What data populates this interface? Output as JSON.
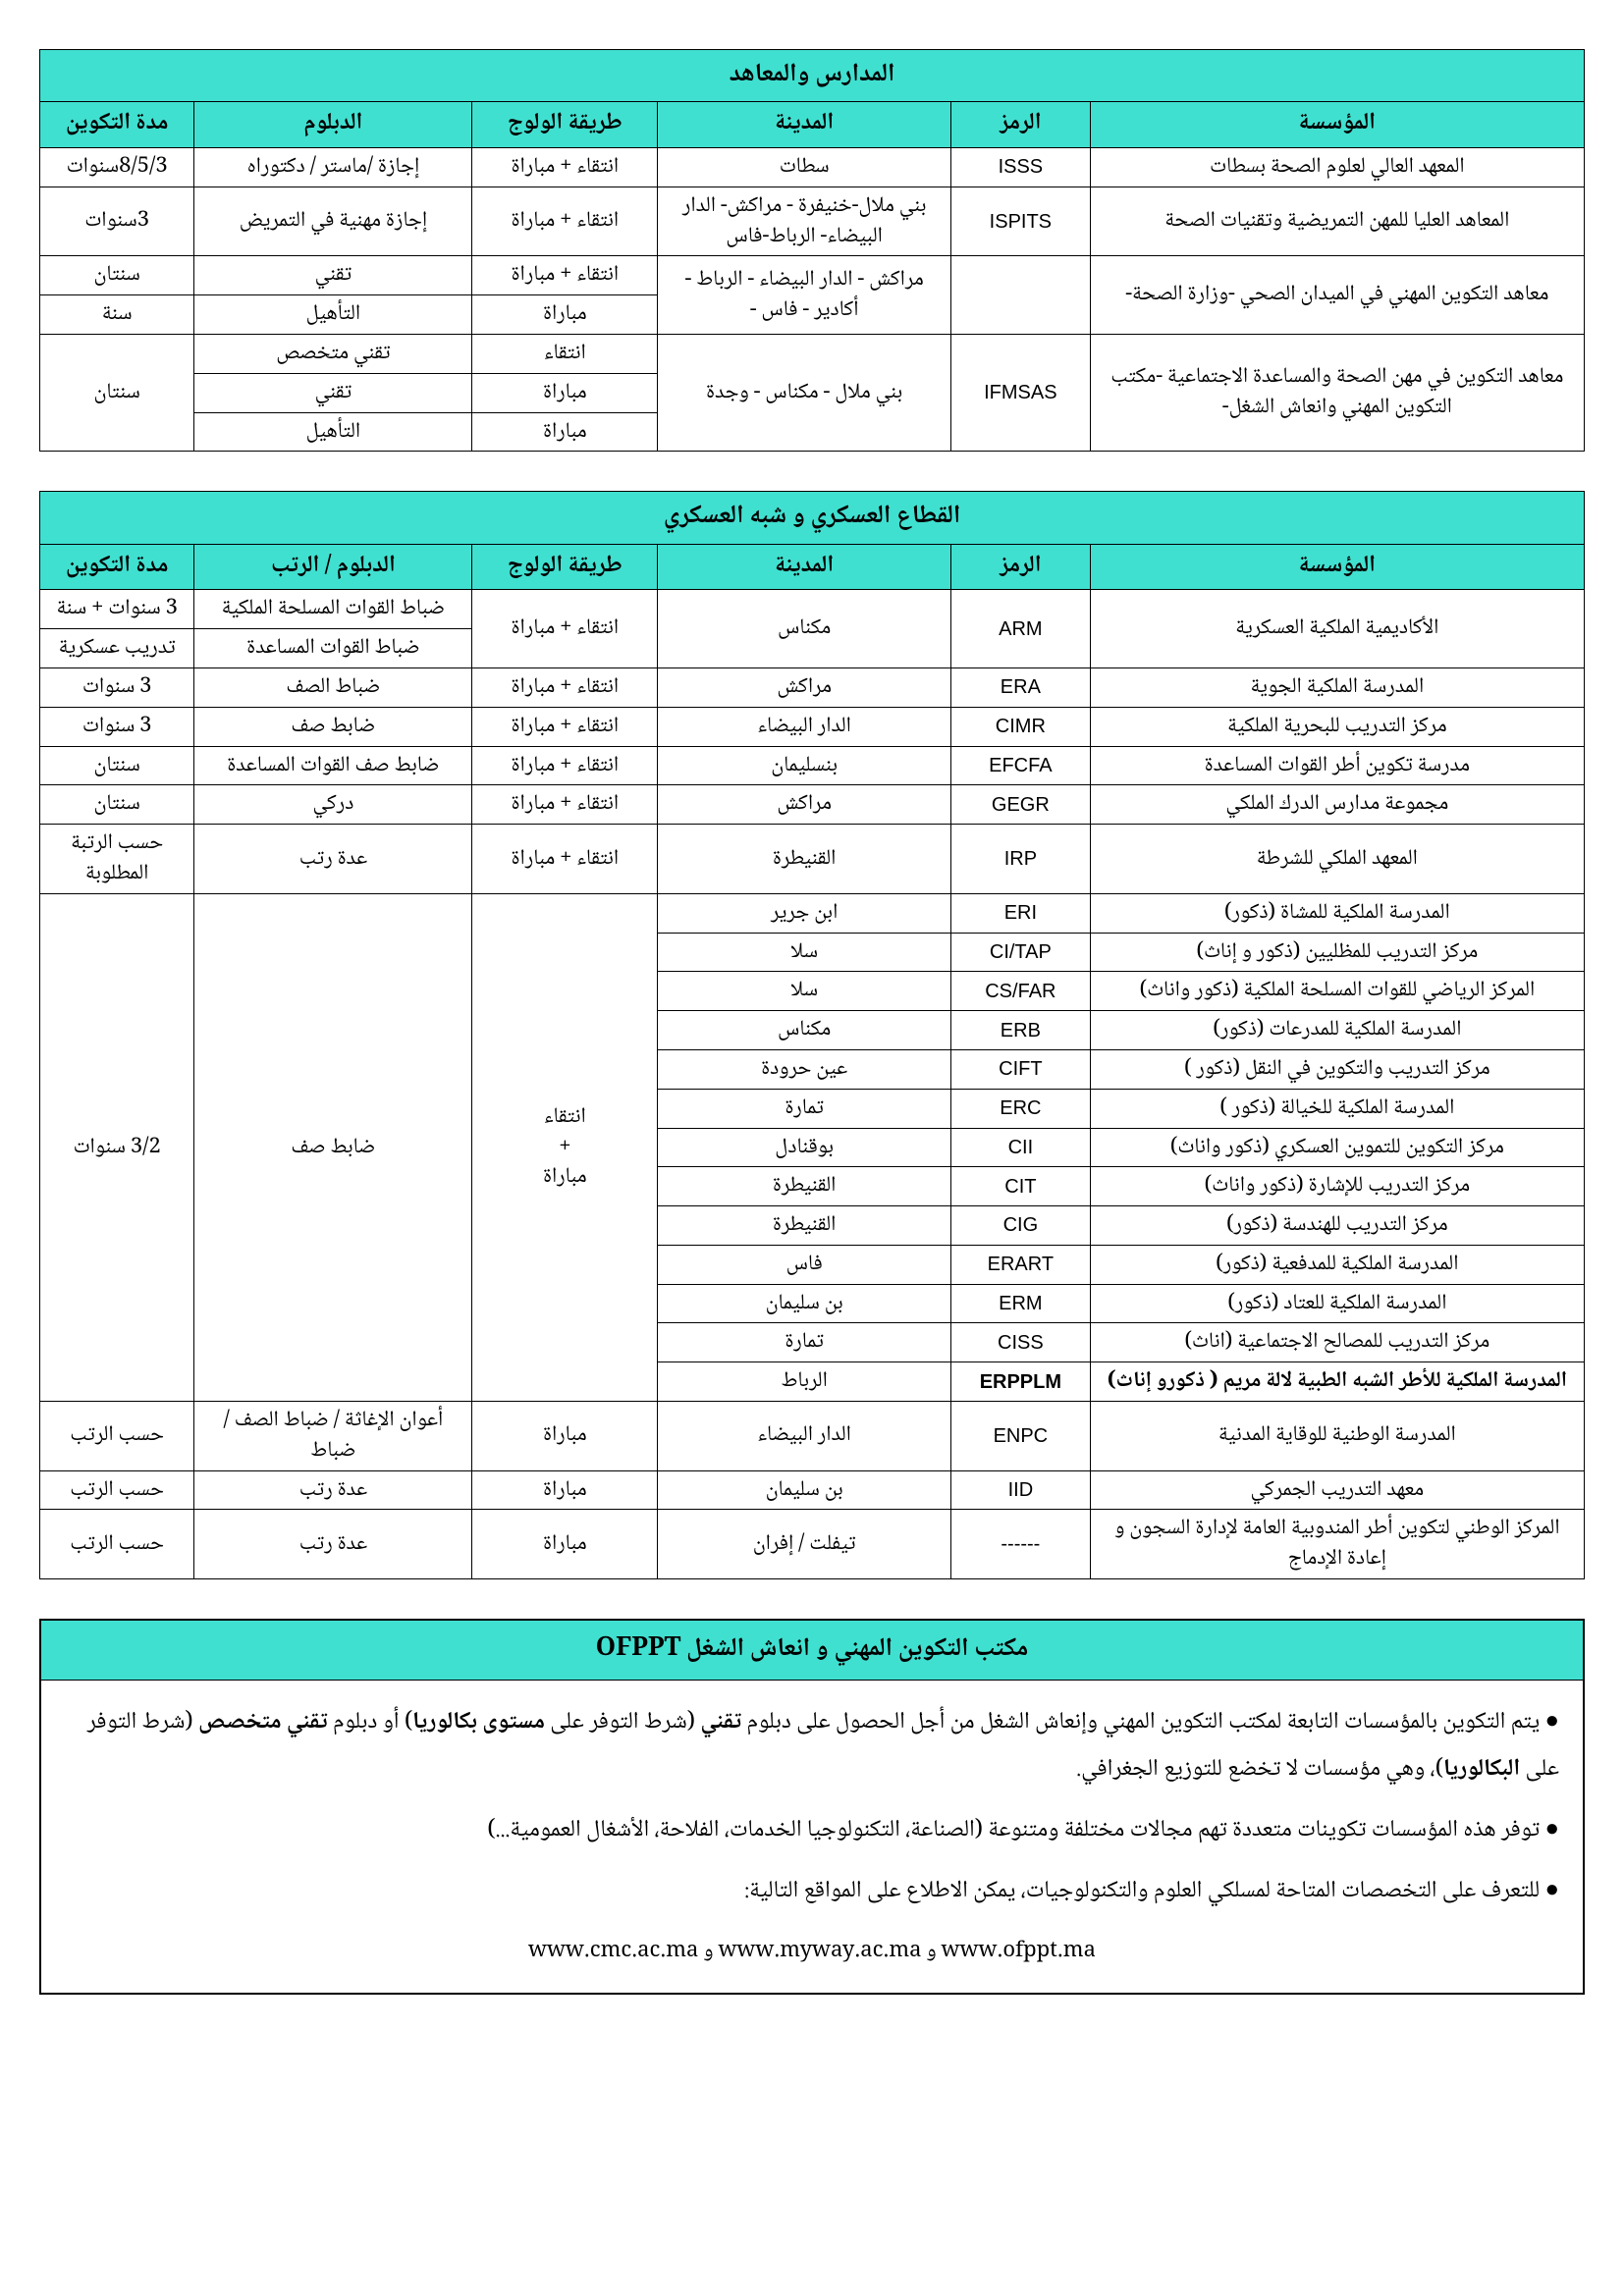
{
  "colors": {
    "header_bg": "#40e0d0",
    "border": "#000000",
    "text": "#000000",
    "page_bg": "#ffffff"
  },
  "t1": {
    "title": "المدارس والمعاهد",
    "headers": [
      "المؤسسة",
      "الرمز",
      "المدينة",
      "طريقة الولوج",
      "الدبلوم",
      "مدة التكوين"
    ],
    "rows": {
      "r1": {
        "inst": "المعهد العالي لعلوم الصحة بسطات",
        "code": "ISSS",
        "city": "سطات",
        "adm": "انتقاء + مباراة",
        "dip": "إجازة /ماستر / دكتوراه",
        "dur": "8/5/3سنوات"
      },
      "r2": {
        "inst": "المعاهد العليا للمهن التمريضية وتقنيات الصحة",
        "code": "ISPITS",
        "city": "بني ملال-خنيفرة - مراكش- الدار البيضاء- الرباط-فاس",
        "adm": "انتقاء + مباراة",
        "dip": "إجازة مهنية في التمريض",
        "dur": "3سنوات"
      },
      "r3": {
        "inst": "معاهد التكوين المهني في الميدان الصحي -وزارة الصحة-",
        "city": "مراكش - الدار البيضاء - الرباط - أكادير - فاس -",
        "a": {
          "adm": "انتقاء + مباراة",
          "dip": "تقني",
          "dur": "سنتان"
        },
        "b": {
          "adm": "مباراة",
          "dip": "التأهيل",
          "dur": "سنة"
        }
      },
      "r4": {
        "inst": "معاهد التكوين في مهن الصحة والمساعدة الاجتماعية -مكتب التكوين المهني وانعاش الشغل-",
        "code": "IFMSAS",
        "city": "بني ملال - مكناس - وجدة",
        "dur": "سنتان",
        "a": {
          "adm": "انتقاء",
          "dip": "تقني متخصص"
        },
        "b": {
          "adm": "مباراة",
          "dip": "تقني"
        },
        "c": {
          "adm": "مباراة",
          "dip": "التأهيل"
        }
      }
    }
  },
  "t2": {
    "title": "القطاع العسكري و شبه العسكري",
    "headers": [
      "المؤسسة",
      "الرمز",
      "المدينة",
      "طريقة الولوج",
      "الدبلوم / الرتب",
      "مدة التكوين"
    ],
    "rows": {
      "r1": {
        "inst": "الأكاديمية الملكية العسكرية",
        "code": "ARM",
        "city": "مكناس",
        "adm": "انتقاء + مباراة",
        "a": {
          "dip": "ضباط القوات المسلحة الملكية",
          "dur": "3 سنوات + سنة"
        },
        "b": {
          "dip": "ضباط القوات المساعدة",
          "dur": "تدريب عسكرية"
        }
      },
      "r2": {
        "inst": "المدرسة الملكية الجوية",
        "code": "ERA",
        "city": "مراكش",
        "adm": "انتقاء + مباراة",
        "dip": "ضباط الصف",
        "dur": "3 سنوات"
      },
      "r3": {
        "inst": "مركز التدريب للبحرية الملكية",
        "code": "CIMR",
        "city": "الدار البيضاء",
        "adm": "انتقاء + مباراة",
        "dip": "ضابط صف",
        "dur": "3 سنوات"
      },
      "r4": {
        "inst": "مدرسة تكوين أطر القوات المساعدة",
        "code": "EFCFA",
        "city": "بنسليمان",
        "adm": "انتقاء + مباراة",
        "dip": "ضابط صف القوات المساعدة",
        "dur": "سنتان"
      },
      "r5": {
        "inst": "مجموعة مدارس الدرك الملكي",
        "code": "GEGR",
        "city": "مراكش",
        "adm": "انتقاء + مباراة",
        "dip": "دركي",
        "dur": "سنتان"
      },
      "r6": {
        "inst": "المعهد الملكي للشرطة",
        "code": "IRP",
        "city": "القنيطرة",
        "adm": "انتقاء + مباراة",
        "dip": "عدة رتب",
        "dur": "حسب الرتبة المطلوبة"
      },
      "g": {
        "adm": "انتقاء\n+\nمباراة",
        "dip": "ضابط صف",
        "dur": "3/2 سنوات"
      },
      "g1": {
        "inst": "المدرسة الملكية للمشاة (ذكور)",
        "code": "ERI",
        "city": "ابن جرير"
      },
      "g2": {
        "inst": "مركز التدريب للمظليين (ذكور و إناث)",
        "code": "CI/TAP",
        "city": "سلا"
      },
      "g3": {
        "inst": "المركز الرياضي للقوات المسلحة الملكية (ذكور واناث)",
        "code": "CS/FAR",
        "city": "سلا"
      },
      "g4": {
        "inst": "المدرسة الملكية للمدرعات (ذكور)",
        "code": "ERB",
        "city": "مكناس"
      },
      "g5": {
        "inst": "مركز التدريب والتكوين في النقل (ذكور )",
        "code": "CIFT",
        "city": "عين حرودة"
      },
      "g6": {
        "inst": "المدرسة الملكية للخيالة (ذكور )",
        "code": "ERC",
        "city": "تمارة"
      },
      "g7": {
        "inst": "مركز التكوين للتموين العسكري (ذكور واناث)",
        "code": "CII",
        "city": "بوقنادل"
      },
      "g8": {
        "inst": "مركز التدريب للإشارة (ذكور واناث)",
        "code": "CIT",
        "city": "القنيطرة"
      },
      "g9": {
        "inst": "مركز التدريب للهندسة (ذكور)",
        "code": "CIG",
        "city": "القنيطرة"
      },
      "g10": {
        "inst": "المدرسة الملكية للمدفعية (ذكور)",
        "code": "ERART",
        "city": "فاس"
      },
      "g11": {
        "inst": "المدرسة الملكية للعتاد (ذكور)",
        "code": "ERM",
        "city": "بن سليمان"
      },
      "g12": {
        "inst": "مركز التدريب للمصالح الاجتماعية (اناث)",
        "code": "CISS",
        "city": "تمارة"
      },
      "g13": {
        "inst": "المدرسة الملكية للأطر الشبه الطبية لالة مريم    ( ذكورو إناث)",
        "code": "ERPPLM",
        "city": "الرباط",
        "bold": true
      },
      "r7": {
        "inst": "المدرسة الوطنية للوقاية المدنية",
        "code": "ENPC",
        "city": "الدار البيضاء",
        "adm": "مباراة",
        "dip": "أعوان الإغاثة / ضباط الصف /ضباط",
        "dur": "حسب الرتب"
      },
      "r8": {
        "inst": "معهد التدريب الجمركي",
        "code": "IID",
        "city": "بن سليمان",
        "adm": "مباراة",
        "dip": "عدة رتب",
        "dur": "حسب الرتب"
      },
      "r9": {
        "inst": "المركز الوطني لتكوين أطر المندوبية العامة لإدارة السجون و إعادة الإدماج",
        "code": "------",
        "city": "تيفلت / إفران",
        "adm": "مباراة",
        "dip": "عدة رتب",
        "dur": "حسب الرتب"
      }
    }
  },
  "info": {
    "title": "مكتب التكوين المهني و انعاش الشغل OFPPT",
    "p1_a": "● يتم التكوين بالمؤسسات التابعة لمكتب التكوين المهني وإنعاش الشغل من أجل الحصول على دبلوم ",
    "p1_b": "تقني",
    "p1_c": " (شرط التوفر على ",
    "p1_d": "مستوى بكالوريا",
    "p1_e": ") أو دبلوم ",
    "p1_f": "تقني متخصص",
    "p1_g": " (شرط التوفر على ",
    "p1_h": "البكالوريا",
    "p1_i": ")، وهي مؤسسات لا تخضع للتوزيع الجغرافي.",
    "p2": "● توفر هذه المؤسسات تكوينات متعددة تهم مجالات مختلفة ومتنوعة (الصناعة، التكنولوجيا الخدمات، الفلاحة، الأشغال العمومية...)",
    "p3": "● للتعرف على التخصصات المتاحة لمسلكي العلوم والتكنولوجيات، يمكن الاطلاع على المواقع التالية:",
    "links": "www.cmc.ac.ma   و   www.myway.ac.ma   و   www.ofppt.ma"
  }
}
